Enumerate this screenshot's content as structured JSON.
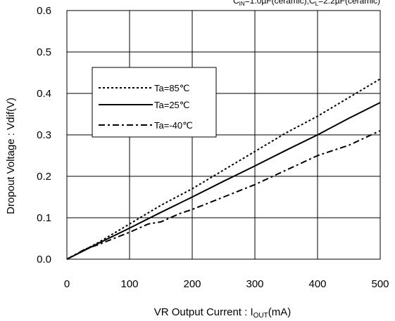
{
  "chart_data": {
    "type": "line",
    "title": "",
    "condition": {
      "cin_label": "C",
      "cin_sub": "IN",
      "cin_value": "=1.0µF(ceramic),C",
      "cl_sub": "L",
      "cl_value": "=2.2µF(ceramic)"
    },
    "xlabel": {
      "main": "VR Output Current : I",
      "sub": "OUT",
      "unit": "(mA)"
    },
    "ylabel": "Dropout Voltage : Vdif(V)",
    "xlim": [
      0,
      500
    ],
    "ylim": [
      0,
      0.6
    ],
    "x_ticks": [
      0,
      100,
      200,
      300,
      400,
      500
    ],
    "x_tick_labels": [
      "0",
      "100",
      "200",
      "300",
      "400",
      "500"
    ],
    "y_ticks": [
      0,
      0.1,
      0.2,
      0.3,
      0.4,
      0.5,
      0.6
    ],
    "y_tick_labels": [
      "0.0",
      "0.1",
      "0.2",
      "0.3",
      "0.4",
      "0.5",
      "0.6"
    ],
    "grid": true,
    "legend_position": "upper-left",
    "series": [
      {
        "name": "Ta=85℃",
        "style": "dotted",
        "x": [
          0,
          50,
          100,
          150,
          200,
          250,
          300,
          350,
          400,
          450,
          500
        ],
        "y": [
          0,
          0.04,
          0.085,
          0.13,
          0.17,
          0.215,
          0.26,
          0.305,
          0.345,
          0.39,
          0.435
        ]
      },
      {
        "name": "Ta=25℃",
        "style": "solid",
        "x": [
          0,
          50,
          100,
          150,
          200,
          250,
          300,
          350,
          400,
          450,
          500
        ],
        "y": [
          0,
          0.038,
          0.075,
          0.113,
          0.15,
          0.188,
          0.225,
          0.263,
          0.3,
          0.34,
          0.378
        ]
      },
      {
        "name": "Ta=-40℃",
        "style": "dash-dot",
        "x": [
          0,
          30,
          50,
          100,
          130,
          150,
          180,
          200,
          250,
          300,
          350,
          400,
          450,
          500
        ],
        "y": [
          0,
          0.025,
          0.035,
          0.065,
          0.085,
          0.09,
          0.11,
          0.12,
          0.15,
          0.18,
          0.215,
          0.25,
          0.275,
          0.31
        ]
      }
    ]
  }
}
